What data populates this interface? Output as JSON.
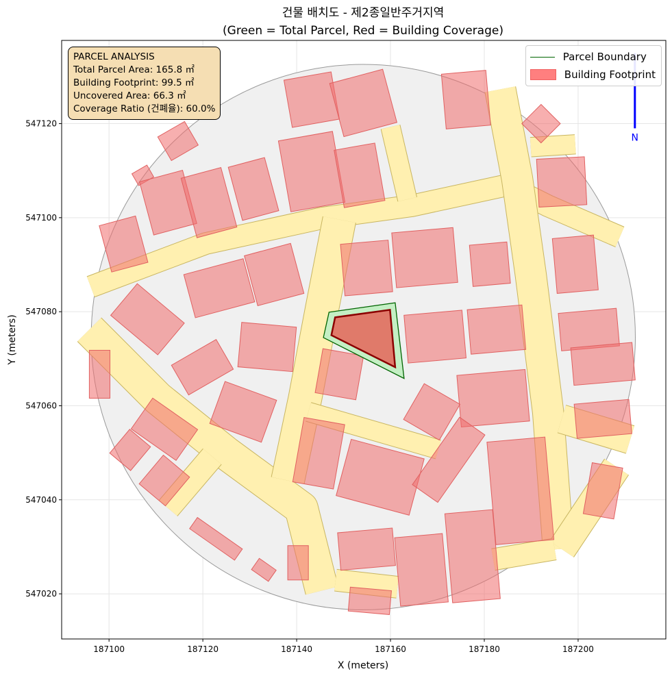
{
  "chart_data": {
    "type": "map",
    "title": "건물 배치도 - 제2종일반주거지역",
    "subtitle": "(Green = Total Parcel, Red = Building Coverage)",
    "xlabel": "X (meters)",
    "ylabel": "Y (meters)",
    "xlim": [
      187089.9,
      187218.7
    ],
    "ylim": [
      547010.4,
      547137.7
    ],
    "xticks": [
      187100,
      187120,
      187140,
      187160,
      187180,
      187200
    ],
    "yticks": [
      547020,
      547040,
      547060,
      547080,
      547100,
      547120
    ],
    "grid": true,
    "legend": {
      "placement": "top-right",
      "entries": [
        {
          "label": "Parcel Boundary",
          "color": "#006400"
        },
        {
          "label": "Building Footprint",
          "color": "#ff7f7f"
        }
      ]
    },
    "info_box": {
      "title": "PARCEL ANALYSIS",
      "lines": [
        "Total Parcel Area: 165.8 ㎡",
        "Building Footprint: 99.5 ㎡",
        "Uncovered Area: 66.3 ㎡",
        "Coverage Ratio (건폐율): 60.0%"
      ]
    },
    "area_boundary": {
      "center": [
        187154.2,
        547074.6
      ],
      "radius": 58
    },
    "north_arrow": {
      "label": "N",
      "x": 187212.1,
      "y_from": 547119,
      "y_to": 547135,
      "color": "#0000ff"
    },
    "target_parcel": [
      [
        187146.9,
        547079.9
      ],
      [
        187161.0,
        547081.9
      ],
      [
        187162.9,
        547065.8
      ],
      [
        187145.7,
        547074.5
      ]
    ],
    "target_building": [
      [
        187147.4,
        547075.0
      ],
      [
        187148.2,
        547078.8
      ],
      [
        187159.9,
        547080.4
      ],
      [
        187161.0,
        547068.2
      ]
    ],
    "roads": [
      {
        "width": 4.5,
        "points": [
          [
            187096.1,
            547085.3
          ],
          [
            187120.6,
            547094.5
          ],
          [
            187145.4,
            547099.9
          ],
          [
            187164.4,
            547102.5
          ],
          [
            187184.8,
            547106.9
          ],
          [
            187193.6,
            547102.5
          ],
          [
            187208.9,
            547095.9
          ]
        ]
      },
      {
        "width": 6.5,
        "points": [
          [
            187183.4,
            547127.3
          ],
          [
            187187,
            547108.3
          ],
          [
            187189.9,
            547087.9
          ],
          [
            187193.6,
            547058.7
          ],
          [
            187195.8,
            547029.5
          ]
        ]
      },
      {
        "width": 7,
        "points": [
          [
            187095.8,
            547076.2
          ],
          [
            187110.4,
            547061.6
          ],
          [
            187125,
            547049.9
          ],
          [
            187141,
            547038.2
          ],
          [
            187145.4,
            547020.7
          ]
        ]
      },
      {
        "width": 7,
        "points": [
          [
            187149.1,
            547099.6
          ],
          [
            187145.4,
            547080.6
          ],
          [
            187141.8,
            547061.6
          ],
          [
            187138.1,
            547044.1
          ]
        ]
      },
      {
        "width": 4,
        "points": [
          [
            187142.5,
            547058.7
          ],
          [
            187170.2,
            547050.7
          ]
        ]
      },
      {
        "width": 6,
        "points": [
          [
            187196.5,
            547057.2
          ],
          [
            187211.1,
            547052.8
          ]
        ]
      },
      {
        "width": 6,
        "points": [
          [
            187208.2,
            547047
          ],
          [
            187196.5,
            547029.5
          ]
        ]
      },
      {
        "width": 4.5,
        "points": [
          [
            187148.3,
            547022.9
          ],
          [
            187161.5,
            547021.4
          ]
        ]
      },
      {
        "width": 4.5,
        "points": [
          [
            187181.9,
            547027.3
          ],
          [
            187195,
            547029.5
          ]
        ]
      },
      {
        "width": 4,
        "points": [
          [
            187160,
            547119.3
          ],
          [
            187163.6,
            547103.9
          ]
        ]
      },
      {
        "width": 4,
        "points": [
          [
            187189.9,
            547115
          ],
          [
            187199.4,
            547115.6
          ]
        ]
      },
      {
        "width": 5,
        "points": [
          [
            187112.6,
            547038.2
          ],
          [
            187122,
            547049.2
          ]
        ]
      }
    ],
    "buildings": [
      {
        "cx": 187143.2,
        "cy": 547125.1,
        "w": 10.2,
        "h": 10.2,
        "angle": 10
      },
      {
        "cx": 187154.2,
        "cy": 547124.4,
        "w": 11.7,
        "h": 11.7,
        "angle": 15
      },
      {
        "cx": 187176.1,
        "cy": 547125.1,
        "w": 9.5,
        "h": 11.7,
        "angle": 5
      },
      {
        "cx": 187192.1,
        "cy": 547120,
        "w": 5.8,
        "h": 5.8,
        "angle": -45
      },
      {
        "cx": 187114.7,
        "cy": 547116.3,
        "w": 6.6,
        "h": 5.8,
        "angle": 30
      },
      {
        "cx": 187107.2,
        "cy": 547109,
        "w": 3.7,
        "h": 2.9,
        "angle": 30
      },
      {
        "cx": 187143.2,
        "cy": 547109.8,
        "w": 11.7,
        "h": 15.3,
        "angle": 10
      },
      {
        "cx": 187153.4,
        "cy": 547109,
        "w": 8.8,
        "h": 12.4,
        "angle": 10
      },
      {
        "cx": 187112.6,
        "cy": 547103.2,
        "w": 9.5,
        "h": 11.7,
        "angle": 15
      },
      {
        "cx": 187121.3,
        "cy": 547103.2,
        "w": 8.8,
        "h": 13.1,
        "angle": 15
      },
      {
        "cx": 187130.8,
        "cy": 547106.1,
        "w": 8,
        "h": 11.7,
        "angle": 15
      },
      {
        "cx": 187103.1,
        "cy": 547094.4,
        "w": 8,
        "h": 10.2,
        "angle": 15
      },
      {
        "cx": 187196.5,
        "cy": 547107.6,
        "w": 10.2,
        "h": 10.2,
        "angle": 3
      },
      {
        "cx": 187123.5,
        "cy": 547085,
        "w": 13.1,
        "h": 9.5,
        "angle": 15
      },
      {
        "cx": 187135.2,
        "cy": 547087.9,
        "w": 10.2,
        "h": 11,
        "angle": 15
      },
      {
        "cx": 187108.2,
        "cy": 547078.4,
        "w": 13.1,
        "h": 8.8,
        "angle": -40
      },
      {
        "cx": 187154.9,
        "cy": 547089.3,
        "w": 10.2,
        "h": 11,
        "angle": 5
      },
      {
        "cx": 187167.3,
        "cy": 547091.5,
        "w": 13.1,
        "h": 11.7,
        "angle": 5
      },
      {
        "cx": 187181.2,
        "cy": 547090.1,
        "w": 8,
        "h": 8.8,
        "angle": 5
      },
      {
        "cx": 187199.4,
        "cy": 547090.1,
        "w": 8.8,
        "h": 11.7,
        "angle": 5
      },
      {
        "cx": 187133.7,
        "cy": 547072.5,
        "w": 11.7,
        "h": 9.5,
        "angle": -5
      },
      {
        "cx": 187119.9,
        "cy": 547068.2,
        "w": 11,
        "h": 7.3,
        "angle": 30
      },
      {
        "cx": 187149.1,
        "cy": 547066.7,
        "w": 8.8,
        "h": 9.5,
        "angle": -10
      },
      {
        "cx": 187169.5,
        "cy": 547074.7,
        "w": 12.4,
        "h": 10.2,
        "angle": 5
      },
      {
        "cx": 187182.6,
        "cy": 547076.2,
        "w": 11.7,
        "h": 9.5,
        "angle": 5
      },
      {
        "cx": 187202.3,
        "cy": 547076.2,
        "w": 12.4,
        "h": 8,
        "angle": 5
      },
      {
        "cx": 187205.3,
        "cy": 547068.9,
        "w": 13.1,
        "h": 8,
        "angle": 5
      },
      {
        "cx": 187181.9,
        "cy": 547061.6,
        "w": 14.6,
        "h": 11,
        "angle": 5
      },
      {
        "cx": 187205.3,
        "cy": 547057.2,
        "w": 11.7,
        "h": 7.3,
        "angle": 5
      },
      {
        "cx": 187128.6,
        "cy": 547058.7,
        "w": 11.7,
        "h": 9.5,
        "angle": -20
      },
      {
        "cx": 187168.8,
        "cy": 547058.7,
        "w": 8.8,
        "h": 8.8,
        "angle": -30
      },
      {
        "cx": 187111.8,
        "cy": 547055,
        "w": 11.7,
        "h": 8,
        "angle": -35
      },
      {
        "cx": 187098,
        "cy": 547066.7,
        "w": 4.4,
        "h": 10.2,
        "angle": 0
      },
      {
        "cx": 187144.7,
        "cy": 547049.9,
        "w": 8.8,
        "h": 13.9,
        "angle": -10
      },
      {
        "cx": 187157.8,
        "cy": 547044.8,
        "w": 16.1,
        "h": 12.4,
        "angle": -15
      },
      {
        "cx": 187172.4,
        "cy": 547048.5,
        "w": 6.6,
        "h": 17.5,
        "angle": -35
      },
      {
        "cx": 187187.7,
        "cy": 547041.9,
        "w": 12.4,
        "h": 21.9,
        "angle": 5
      },
      {
        "cx": 187205.3,
        "cy": 547041.9,
        "w": 6.6,
        "h": 11,
        "angle": -10
      },
      {
        "cx": 187104.5,
        "cy": 547050.6,
        "w": 5.8,
        "h": 6.6,
        "angle": -40
      },
      {
        "cx": 187111.8,
        "cy": 547044.1,
        "w": 7.3,
        "h": 8,
        "angle": -40
      },
      {
        "cx": 187154.9,
        "cy": 547029.5,
        "w": 11.7,
        "h": 8,
        "angle": 5
      },
      {
        "cx": 187166.6,
        "cy": 547025.1,
        "w": 10.2,
        "h": 14.6,
        "angle": 5
      },
      {
        "cx": 187177.5,
        "cy": 547028,
        "w": 10.2,
        "h": 19,
        "angle": 5
      },
      {
        "cx": 187122.8,
        "cy": 547031.7,
        "w": 11.7,
        "h": 2.9,
        "angle": -35
      },
      {
        "cx": 187140.3,
        "cy": 547026.6,
        "w": 4.4,
        "h": 7.3,
        "angle": 0
      },
      {
        "cx": 187155.6,
        "cy": 547018.5,
        "w": 8.8,
        "h": 5.1,
        "angle": -5
      },
      {
        "cx": 187133,
        "cy": 547025.1,
        "w": 4.4,
        "h": 2.9,
        "angle": -35
      }
    ]
  }
}
